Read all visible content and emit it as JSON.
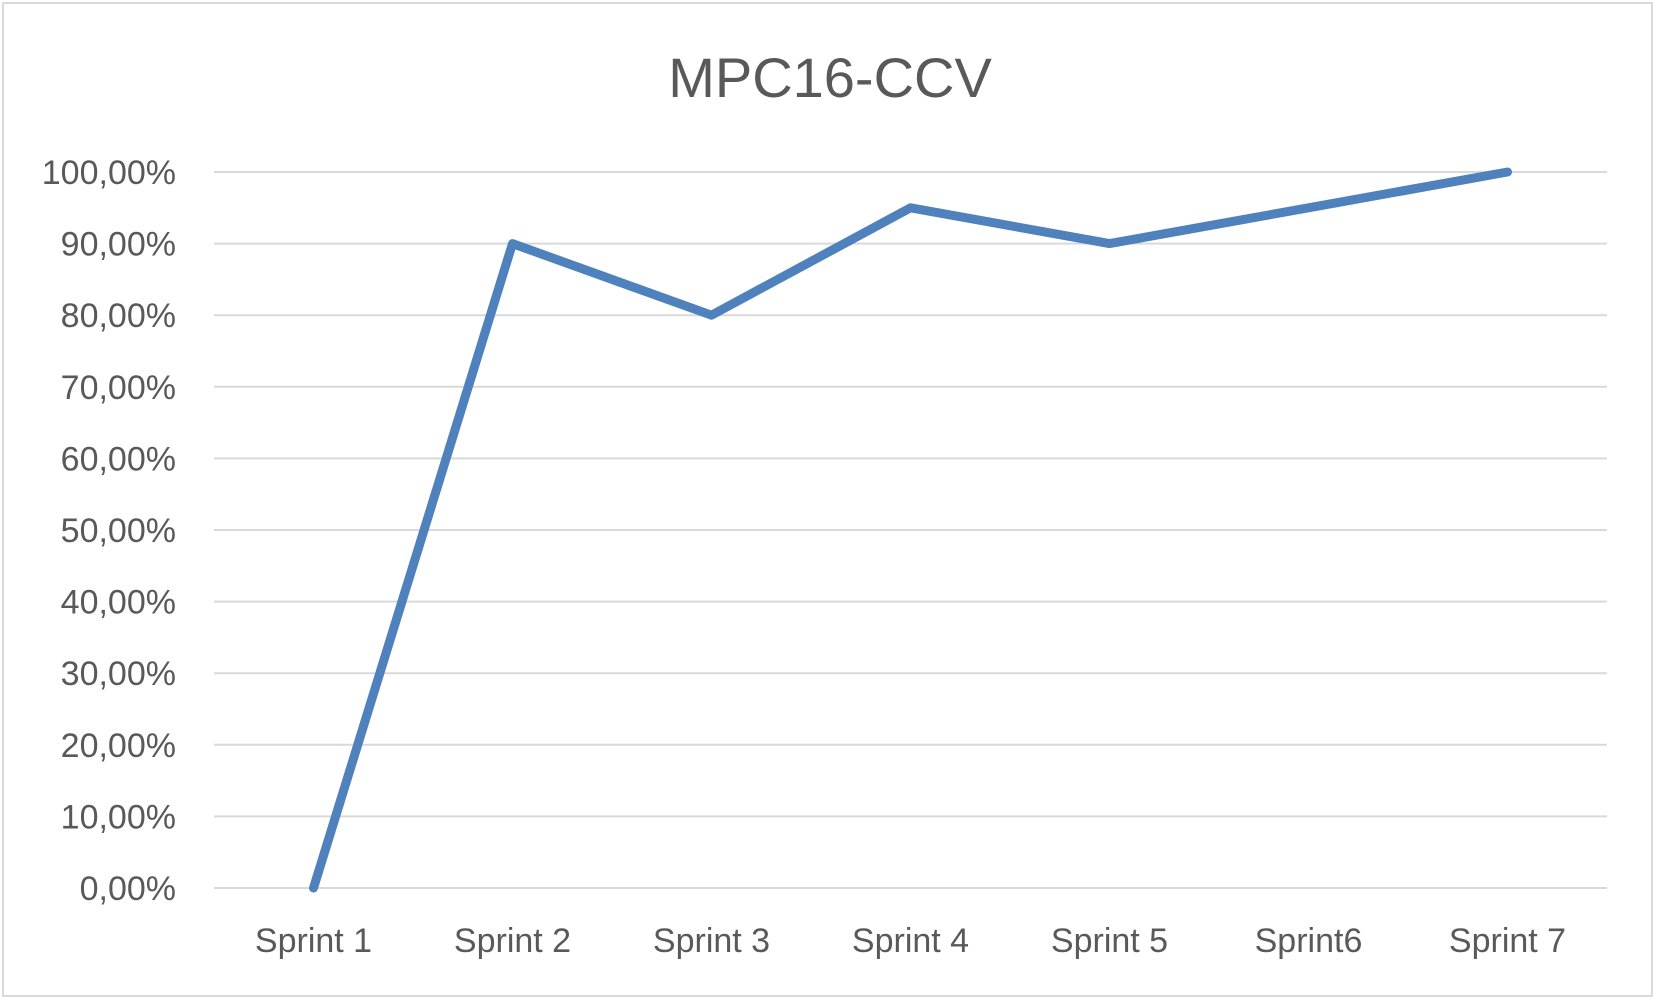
{
  "chart_data": {
    "type": "line",
    "title": "MPC16-CCV",
    "xlabel": "",
    "ylabel": "",
    "categories": [
      "Sprint 1",
      "Sprint 2",
      "Sprint 3",
      "Sprint 4",
      "Sprint 5",
      "Sprint6",
      "Sprint 7"
    ],
    "series": [
      {
        "values": [
          0.0,
          0.9,
          0.8,
          0.95,
          0.9,
          0.95,
          1.0
        ],
        "color": "#4f81bd"
      }
    ],
    "ylim": [
      0,
      1
    ],
    "yticks": [
      0,
      0.1,
      0.2,
      0.3,
      0.4,
      0.5,
      0.6,
      0.7,
      0.8,
      0.9,
      1.0
    ],
    "ytick_labels": [
      "0,00%",
      "10,00%",
      "20,00%",
      "30,00%",
      "40,00%",
      "50,00%",
      "60,00%",
      "70,00%",
      "80,00%",
      "90,00%",
      "100,00%"
    ],
    "grid": true,
    "legend": "none",
    "gridline_color": "#d9d9d9",
    "text_color": "#595959"
  }
}
